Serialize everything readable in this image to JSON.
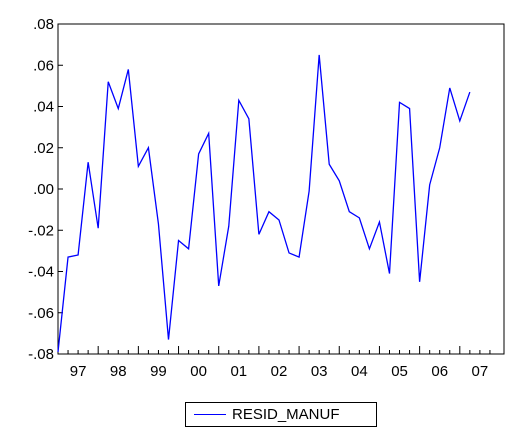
{
  "chart_data": {
    "type": "line",
    "title": "",
    "xlabel": "",
    "ylabel": "",
    "ylim": [
      -0.08,
      0.08
    ],
    "y_ticks": [
      0.08,
      0.06,
      0.04,
      0.02,
      0.0,
      -0.02,
      -0.04,
      -0.06,
      -0.08
    ],
    "y_tick_labels": [
      ".08",
      ".06",
      ".04",
      ".02",
      ".00",
      "-.02",
      "-.04",
      "-.06",
      "-.08"
    ],
    "x_tick_labels": [
      "97",
      "98",
      "99",
      "00",
      "01",
      "02",
      "03",
      "04",
      "05",
      "06",
      "07"
    ],
    "frequency": "quarterly",
    "x_start": "1997Q1",
    "grid": false,
    "legend_position": "bottom-center",
    "series": [
      {
        "name": "RESID_MANUF",
        "color": "#0000ff",
        "values": [
          -0.079,
          -0.033,
          -0.032,
          0.013,
          -0.019,
          0.052,
          0.039,
          0.058,
          0.011,
          0.02,
          -0.017,
          -0.073,
          -0.025,
          -0.029,
          0.017,
          0.027,
          -0.047,
          -0.018,
          0.043,
          0.034,
          -0.022,
          -0.011,
          -0.015,
          -0.031,
          -0.033,
          -0.001,
          0.065,
          0.012,
          0.004,
          -0.011,
          -0.014,
          -0.029,
          -0.016,
          -0.041,
          0.042,
          0.039,
          -0.045,
          0.002,
          0.02,
          0.049,
          0.033,
          0.047
        ]
      }
    ]
  }
}
